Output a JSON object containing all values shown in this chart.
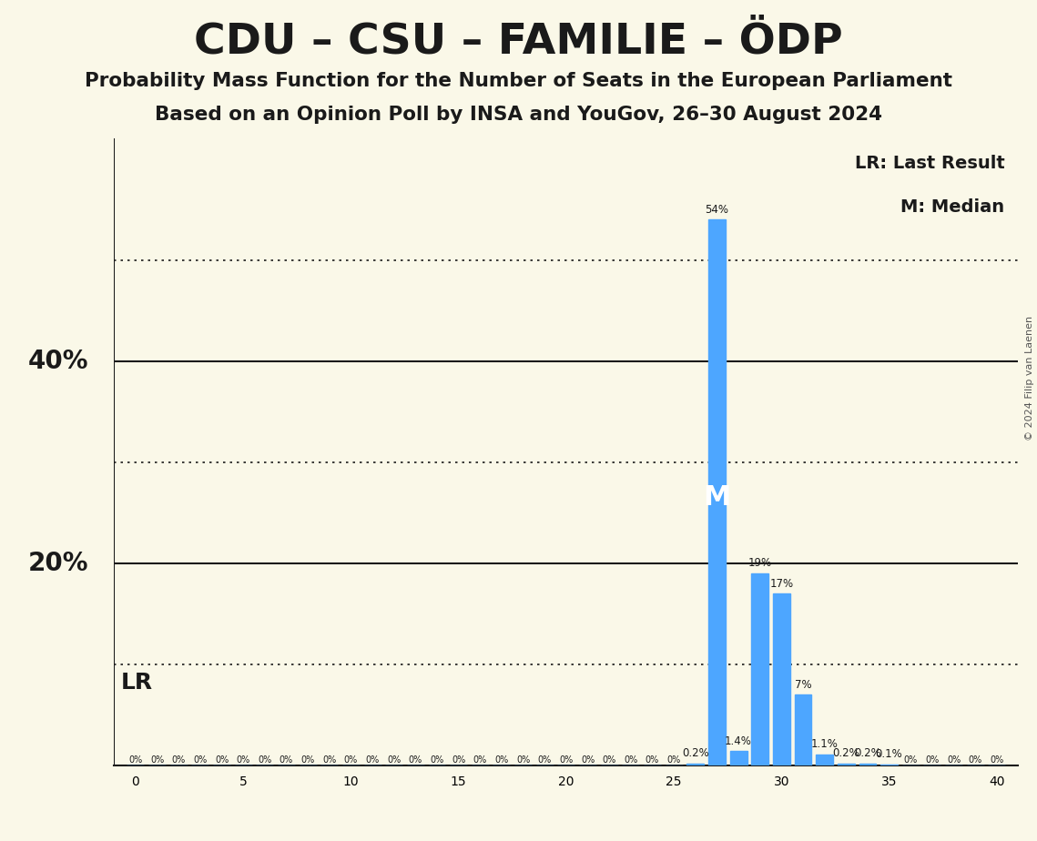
{
  "title": "CDU – CSU – FAMILIE – ÖDP",
  "subtitle1": "Probability Mass Function for the Number of Seats in the European Parliament",
  "subtitle2": "Based on an Opinion Poll by INSA and YouGov, 26–30 August 2024",
  "copyright": "© 2024 Filip van Laenen",
  "x_min": 0,
  "x_max": 40,
  "x_ticks": [
    0,
    5,
    10,
    15,
    20,
    25,
    30,
    35,
    40
  ],
  "y_ticks_solid": [
    0.2,
    0.4
  ],
  "y_ticks_dotted": [
    0.1,
    0.3,
    0.5
  ],
  "y_labels": {
    "0.2": "20%",
    "0.4": "40%"
  },
  "bar_color": "#4da6ff",
  "background_color": "#faf8e8",
  "pmf": {
    "0": 0.0,
    "1": 0.0,
    "2": 0.0,
    "3": 0.0,
    "4": 0.0,
    "5": 0.0,
    "6": 0.0,
    "7": 0.0,
    "8": 0.0,
    "9": 0.0,
    "10": 0.0,
    "11": 0.0,
    "12": 0.0,
    "13": 0.0,
    "14": 0.0,
    "15": 0.0,
    "16": 0.0,
    "17": 0.0,
    "18": 0.0,
    "19": 0.0,
    "20": 0.0,
    "21": 0.0,
    "22": 0.0,
    "23": 0.0,
    "24": 0.0,
    "25": 0.0,
    "26": 0.002,
    "27": 0.54,
    "28": 0.014,
    "29": 0.19,
    "30": 0.17,
    "31": 0.07,
    "32": 0.011,
    "33": 0.002,
    "34": 0.002,
    "35": 0.001,
    "36": 0.0,
    "37": 0.0,
    "38": 0.0,
    "39": 0.0,
    "40": 0.0
  },
  "label_overrides": {
    "26": "0.2%",
    "27": "54%",
    "28": "1.4%",
    "29": "19%",
    "30": "17%",
    "31": "7%",
    "32": "1.1%",
    "33": "0.2%",
    "34": "0.2%",
    "35": "0.1%"
  },
  "median_seat": 27,
  "last_result_seat": 27,
  "legend_lr": "LR: Last Result",
  "legend_m": "M: Median"
}
